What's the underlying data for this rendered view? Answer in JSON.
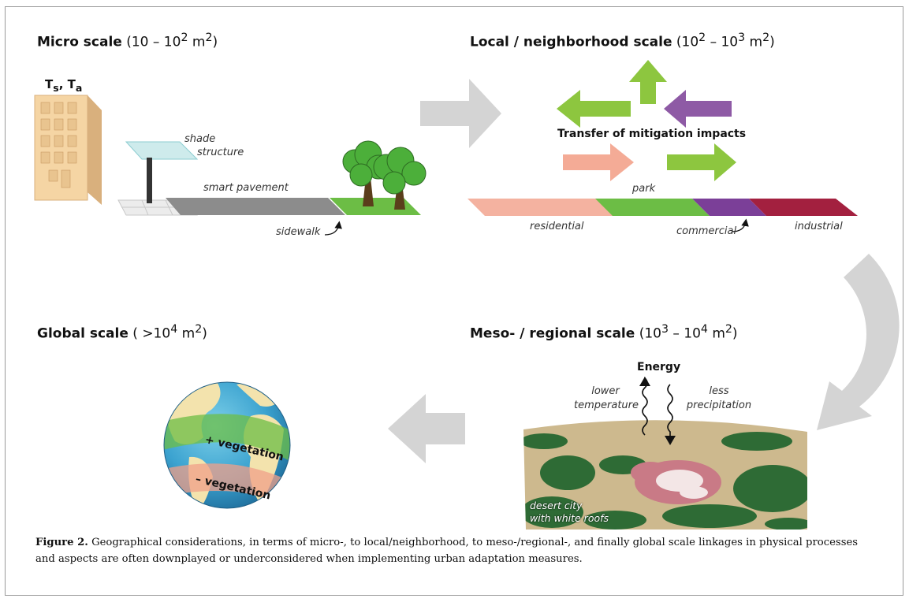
{
  "panels": {
    "micro": {
      "title": "Micro scale",
      "range": "(10 – 10",
      "exp1": "2",
      "unit": " m",
      "exp2": "2",
      "close": ")",
      "temp_label": "T",
      "temp_sub1": "s",
      "temp_sep": ", T",
      "temp_sub2": "a",
      "shade_label_1": "shade",
      "shade_label_2": "structure",
      "pavement_label": "smart pavement",
      "sidewalk_label": "sidewalk"
    },
    "local": {
      "title": "Local / neighborhood scale",
      "range_a": "(10",
      "exp_a": "2",
      "range_b": " – 10",
      "exp_b": "3",
      "unit": " m",
      "exp_u": "2",
      "close": ")",
      "transfer_label": "Transfer of mitigation impacts",
      "park_label": "park",
      "residential_label": "residential",
      "commercial_label": "commercial",
      "industrial_label": "industrial"
    },
    "meso": {
      "title": "Meso- / regional scale",
      "range_a": "(10",
      "exp_a": "3",
      "range_b": " – 10",
      "exp_b": "4",
      "unit": " m",
      "exp_u": "2",
      "close": ")",
      "energy_label": "Energy",
      "lower_temp_1": "lower",
      "lower_temp_2": "temperature",
      "less_precip_1": "less",
      "less_precip_2": "precipitation",
      "city_label_1": "desert city",
      "city_label_2": "with white roofs"
    },
    "global": {
      "title": "Global scale",
      "range_a": "( >10",
      "exp_a": "4",
      "unit": " m",
      "exp_u": "2",
      "close": ")",
      "plus_veg": "+ vegetation",
      "minus_veg": "– vegetation"
    }
  },
  "caption": {
    "label": "Figure 2.",
    "text": " Geographical considerations, in terms of micro-, to local/neighborhood, to meso-/regional-, and finally global scale linkages in physical processes and aspects are often downplayed or underconsidered when implementing urban adaptation measures."
  },
  "colors": {
    "arrow_gray": "#d4d4d4",
    "green": "#8dc63f",
    "purple": "#8e5aa5",
    "salmon": "#f4ab96",
    "residential": "#f4b2a0",
    "park": "#6cbd45",
    "commercial": "#7b3f98",
    "industrial": "#a3203f",
    "building": "#f5d5a4",
    "tree": "#4caf3a"
  }
}
